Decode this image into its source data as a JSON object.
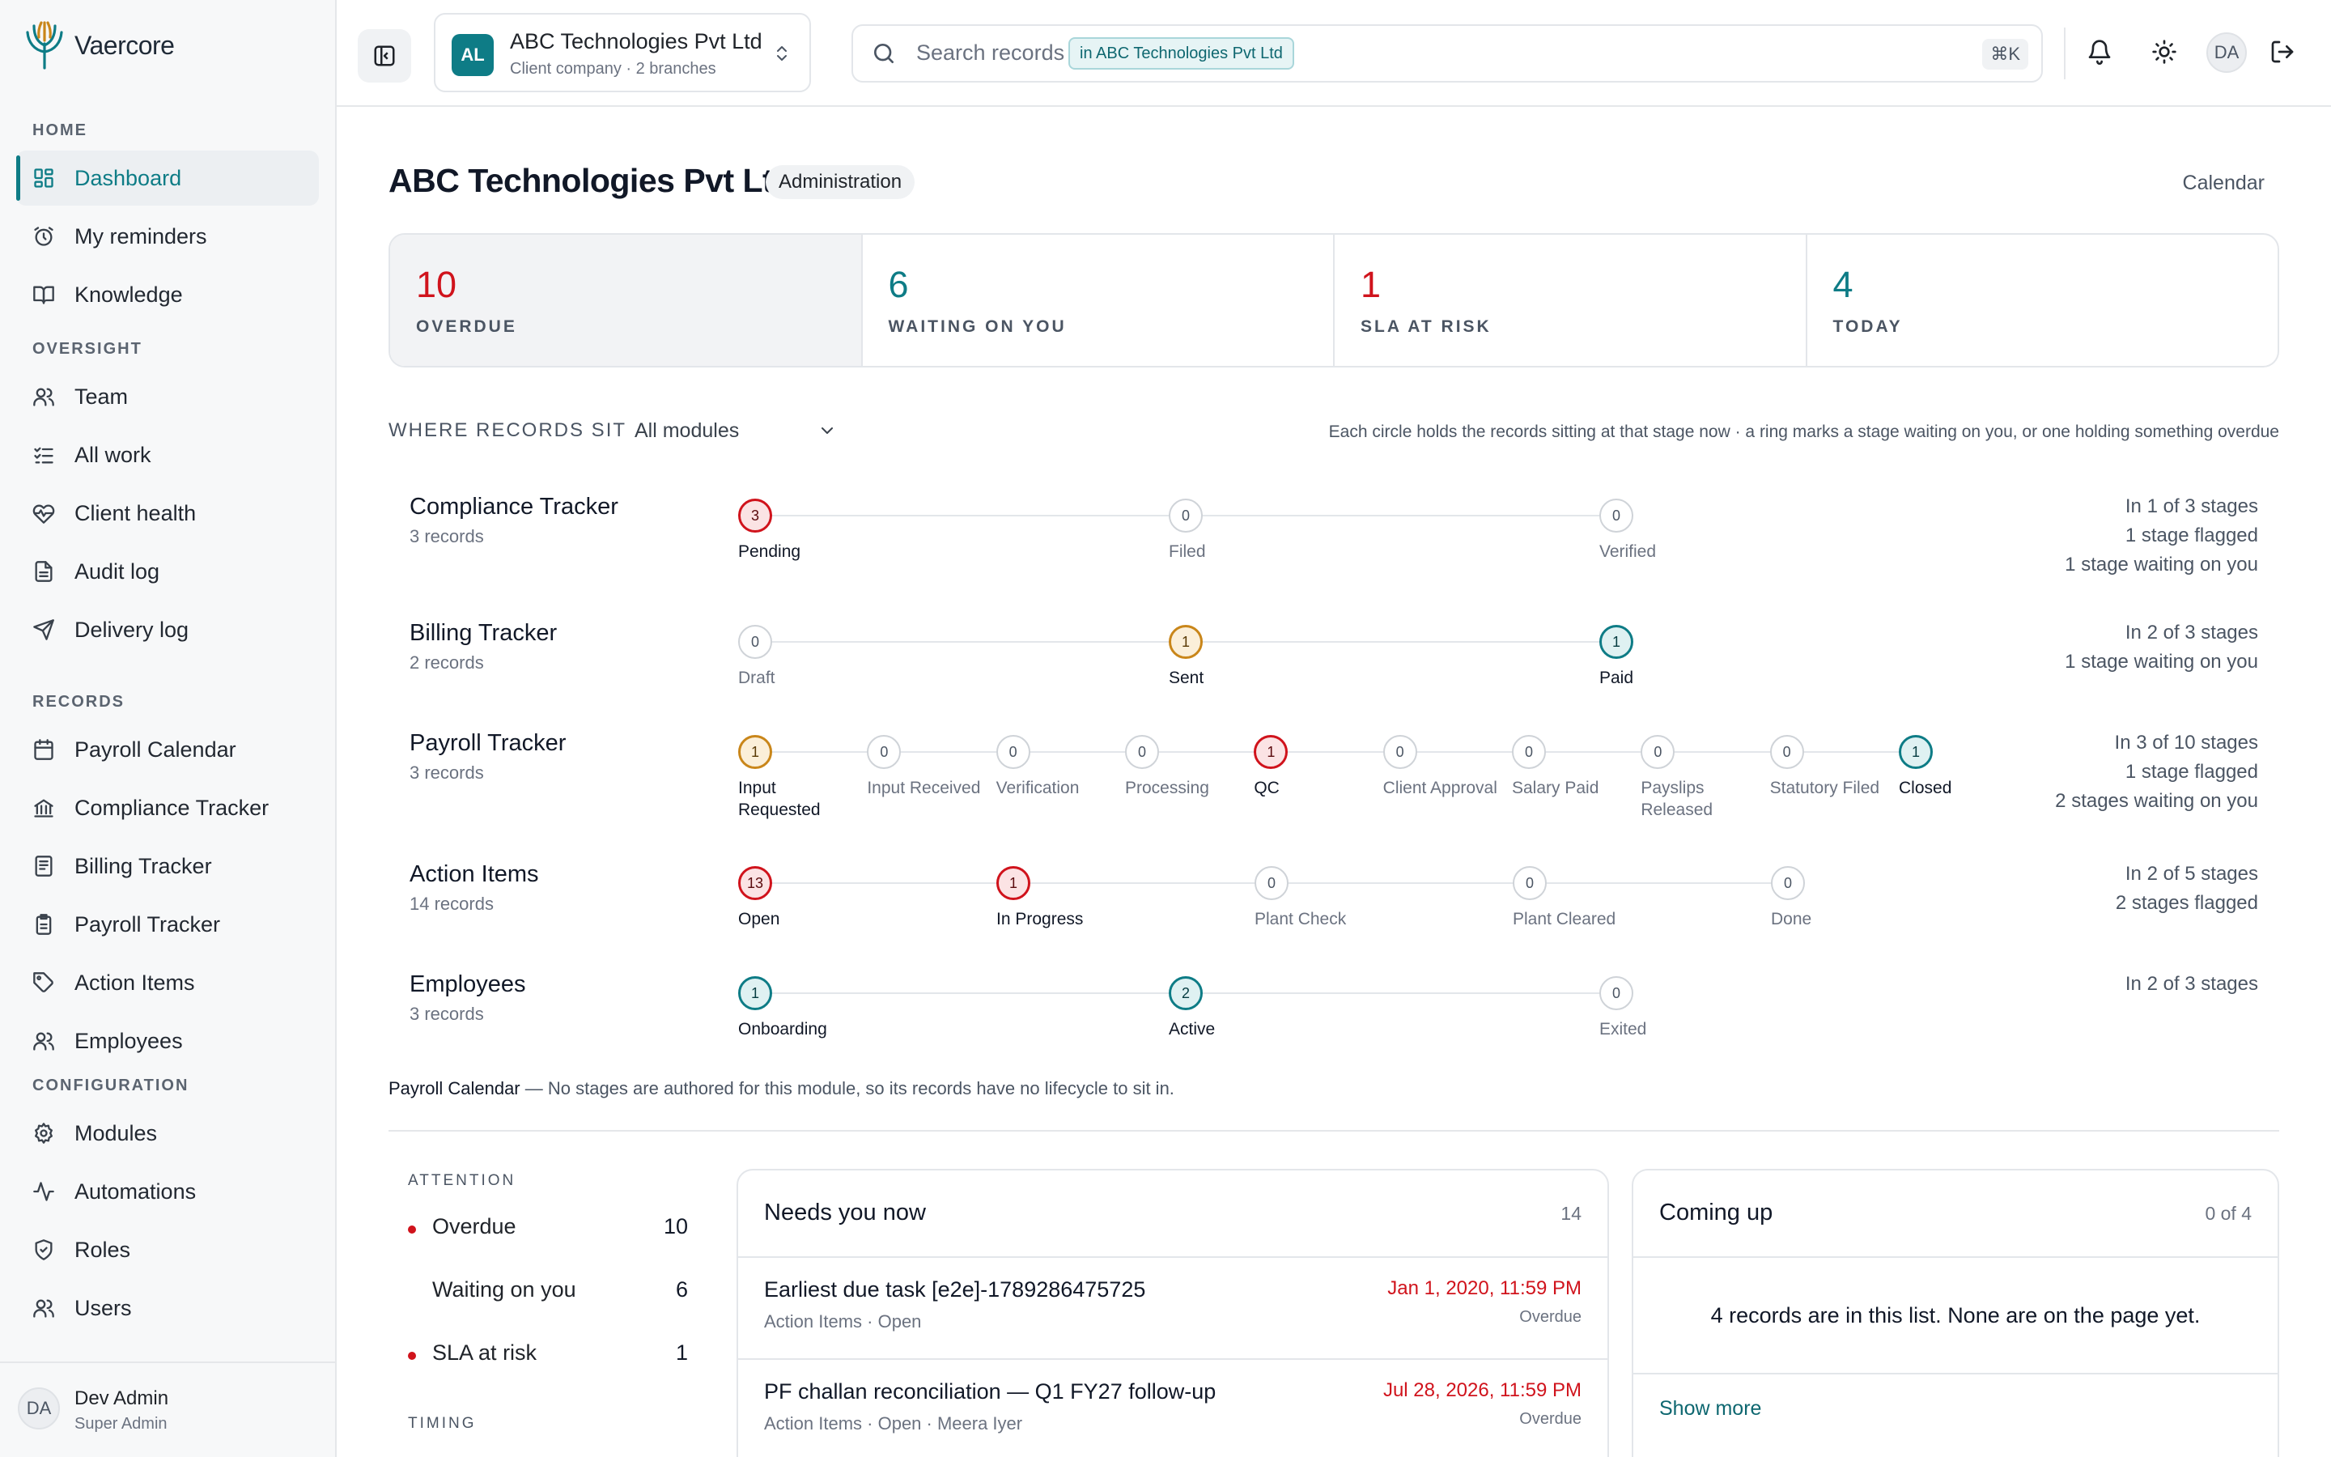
{
  "app": {
    "name": "Vaercore"
  },
  "sidebar": {
    "sections": [
      {
        "title": "HOME",
        "items": [
          {
            "label": "Dashboard",
            "icon": "dashboard-icon",
            "active": true
          },
          {
            "label": "My reminders",
            "icon": "alarm-icon"
          },
          {
            "label": "Knowledge",
            "icon": "book-icon"
          }
        ]
      },
      {
        "title": "OVERSIGHT",
        "items": [
          {
            "label": "Team",
            "icon": "team-icon"
          },
          {
            "label": "All work",
            "icon": "list-check-icon"
          },
          {
            "label": "Client health",
            "icon": "heart-pulse-icon"
          },
          {
            "label": "Audit log",
            "icon": "document-icon"
          },
          {
            "label": "Delivery log",
            "icon": "send-icon"
          }
        ]
      },
      {
        "title": "RECORDS",
        "items": [
          {
            "label": "Payroll Calendar",
            "icon": "calendar-icon"
          },
          {
            "label": "Compliance Tracker",
            "icon": "bank-icon"
          },
          {
            "label": "Billing Tracker",
            "icon": "receipt-icon"
          },
          {
            "label": "Payroll Tracker",
            "icon": "clipboard-icon"
          },
          {
            "label": "Action Items",
            "icon": "tag-icon"
          },
          {
            "label": "Employees",
            "icon": "users-icon"
          }
        ]
      },
      {
        "title": "CONFIGURATION",
        "items": [
          {
            "label": "Modules",
            "icon": "gear-icon"
          },
          {
            "label": "Automations",
            "icon": "activity-icon"
          },
          {
            "label": "Roles",
            "icon": "shield-icon"
          },
          {
            "label": "Users",
            "icon": "users-icon"
          }
        ]
      }
    ],
    "user": {
      "initials": "DA",
      "name": "Dev Admin",
      "role": "Super Admin"
    }
  },
  "topbar": {
    "company": {
      "badge": "AL",
      "name": "ABC Technologies Pvt Ltd",
      "sub": "Client company · 2 branches"
    },
    "search": {
      "placeholder": "Search records",
      "scope": "in ABC Technologies Pvt Ltd",
      "shortcut": "⌘K"
    },
    "avatar": "DA"
  },
  "page": {
    "title": "ABC Technologies Pvt Ltd",
    "badge": "Administration",
    "calendar_link": "Calendar"
  },
  "stats": [
    {
      "value": "10",
      "label": "OVERDUE",
      "color": "#d0131c",
      "selected": true
    },
    {
      "value": "6",
      "label": "WAITING ON YOU",
      "color": "#0e7c86"
    },
    {
      "value": "1",
      "label": "SLA AT RISK",
      "color": "#d0131c"
    },
    {
      "value": "4",
      "label": "TODAY",
      "color": "#0e7c86"
    }
  ],
  "where": {
    "title": "WHERE RECORDS SIT",
    "filter": "All modules",
    "hint": "Each circle holds the records sitting at that stage now · a ring marks a stage waiting on you, or one holding something overdue",
    "trackers": [
      {
        "name": "Compliance Tracker",
        "count": "3 records",
        "stages": [
          {
            "label": "Pending",
            "value": "3",
            "state": "red"
          },
          {
            "label": "Filed",
            "value": "0"
          },
          {
            "label": "Verified",
            "value": "0"
          }
        ],
        "summary": [
          "In 1 of 3 stages",
          "1 stage flagged",
          "1 stage waiting on you"
        ]
      },
      {
        "name": "Billing Tracker",
        "count": "2 records",
        "stages": [
          {
            "label": "Draft",
            "value": "0"
          },
          {
            "label": "Sent",
            "value": "1",
            "state": "amber"
          },
          {
            "label": "Paid",
            "value": "1",
            "state": "teal"
          }
        ],
        "summary": [
          "In 2 of 3 stages",
          "1 stage waiting on you"
        ]
      },
      {
        "name": "Payroll Tracker",
        "count": "3 records",
        "stages": [
          {
            "label": "Input Requested",
            "value": "1",
            "state": "amber"
          },
          {
            "label": "Input Received",
            "value": "0"
          },
          {
            "label": "Verification",
            "value": "0"
          },
          {
            "label": "Processing",
            "value": "0"
          },
          {
            "label": "QC",
            "value": "1",
            "state": "red"
          },
          {
            "label": "Client Approval",
            "value": "0"
          },
          {
            "label": "Salary Paid",
            "value": "0"
          },
          {
            "label": "Payslips Released",
            "value": "0"
          },
          {
            "label": "Statutory Filed",
            "value": "0"
          },
          {
            "label": "Closed",
            "value": "1",
            "state": "teal"
          }
        ],
        "summary": [
          "In 3 of 10 stages",
          "1 stage flagged",
          "2 stages waiting on you"
        ]
      },
      {
        "name": "Action Items",
        "count": "14 records",
        "stages": [
          {
            "label": "Open",
            "value": "13",
            "state": "red"
          },
          {
            "label": "In Progress",
            "value": "1",
            "state": "red"
          },
          {
            "label": "Plant Check",
            "value": "0"
          },
          {
            "label": "Plant Cleared",
            "value": "0"
          },
          {
            "label": "Done",
            "value": "0"
          }
        ],
        "summary": [
          "In 2 of 5 stages",
          "2 stages flagged"
        ]
      },
      {
        "name": "Employees",
        "count": "3 records",
        "stages": [
          {
            "label": "Onboarding",
            "value": "1",
            "state": "teal"
          },
          {
            "label": "Active",
            "value": "2",
            "state": "teal"
          },
          {
            "label": "Exited",
            "value": "0"
          }
        ],
        "summary": [
          "In 2 of 3 stages"
        ]
      }
    ],
    "note_module": "Payroll Calendar",
    "note_text": " — No stages are authored for this module, so its records have no lifecycle to sit in."
  },
  "attention": {
    "title": "ATTENTION",
    "rows": [
      {
        "label": "Overdue",
        "value": "10",
        "dot": true
      },
      {
        "label": "Waiting on you",
        "value": "6",
        "dot": false
      },
      {
        "label": "SLA at risk",
        "value": "1",
        "dot": true
      }
    ],
    "timing_title": "TIMING"
  },
  "needs": {
    "title": "Needs you now",
    "count": "14",
    "items": [
      {
        "title": "Earliest due task [e2e]-1789286475725",
        "meta": "Action Items · Open",
        "date": "Jan 1, 2020, 11:59 PM",
        "status": "Overdue"
      },
      {
        "title": "PF challan reconciliation — Q1 FY27 follow-up",
        "meta": "Action Items · Open · Meera Iyer",
        "date": "Jul 28, 2026, 11:59 PM",
        "status": "Overdue"
      }
    ]
  },
  "coming": {
    "title": "Coming up",
    "count": "0 of 4",
    "message": "4 records are in this list. None are on the page yet.",
    "more": "Show more"
  }
}
